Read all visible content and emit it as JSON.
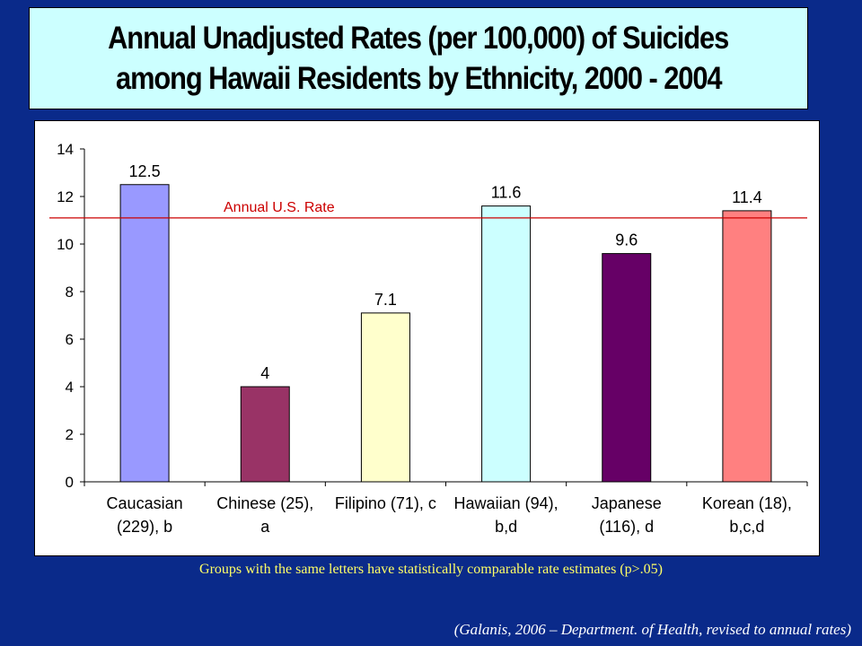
{
  "title": {
    "line1": "Annual Unadjusted Rates (per 100,000) of Suicides",
    "line2": "among Hawaii Residents by Ethnicity, 2000 - 2004"
  },
  "footnote": "Groups with the same letters have statistically comparable rate estimates (p>.05)",
  "source": "(Galanis, 2006 – Department. of Health, revised to annual rates)",
  "chart_data": {
    "type": "bar",
    "categories": [
      [
        "Caucasian",
        "(229), b"
      ],
      [
        "Chinese (25),",
        "a"
      ],
      [
        "Filipino (71), c"
      ],
      [
        "Hawaiian (94),",
        "b,d"
      ],
      [
        "Japanese",
        "(116), d"
      ],
      [
        "Korean (18),",
        "b,c,d"
      ]
    ],
    "values": [
      12.5,
      4,
      7.1,
      11.6,
      9.6,
      11.4
    ],
    "value_labels": [
      "12.5",
      "4",
      "7.1",
      "11.6",
      "9.6",
      "11.4"
    ],
    "bar_colors": [
      "#9999ff",
      "#993366",
      "#ffffcc",
      "#ccffff",
      "#660066",
      "#ff8080"
    ],
    "ylim": [
      0,
      14
    ],
    "yticks": [
      0,
      2,
      4,
      6,
      8,
      10,
      12,
      14
    ],
    "reference_line": {
      "label": "Annual U.S. Rate",
      "value": 11.1,
      "color": "#cc0000"
    },
    "grid": false,
    "legend": "none"
  }
}
